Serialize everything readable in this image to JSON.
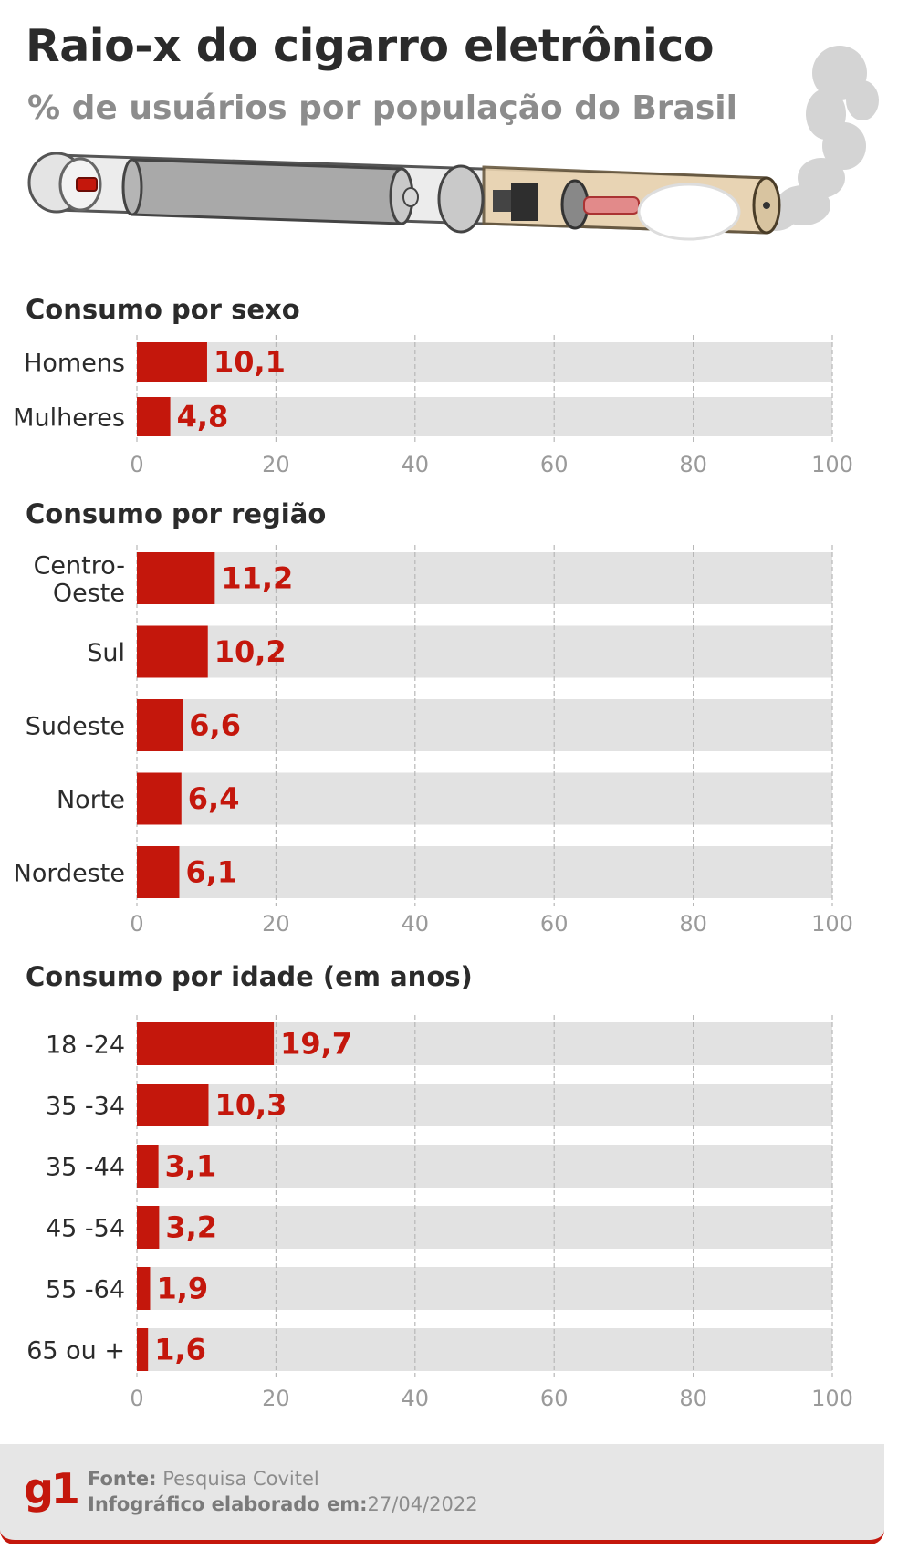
{
  "header": {
    "title": "Raio-x do cigarro eletrônico",
    "subtitle": "% de usuários por população do Brasil"
  },
  "colors": {
    "bar": "#c4170c",
    "track": "#e2e2e2",
    "label": "#2b2b2b",
    "tick": "#9a9a9a",
    "value": "#c4170c"
  },
  "chart_data": [
    {
      "type": "bar",
      "orientation": "horizontal",
      "title": "Consumo por sexo",
      "categories": [
        "Homens",
        "Mulheres"
      ],
      "values": [
        10.1,
        4.8
      ],
      "value_labels": [
        "10,1",
        "4,8"
      ],
      "xlim": [
        0,
        100
      ],
      "ticks": [
        "0",
        "20",
        "40",
        "60",
        "80",
        "100"
      ],
      "tick_values": [
        0,
        20,
        40,
        60,
        80,
        100
      ]
    },
    {
      "type": "bar",
      "orientation": "horizontal",
      "title": "Consumo por região",
      "categories": [
        [
          "Centro-",
          "Oeste"
        ],
        [
          "Sul"
        ],
        [
          "Sudeste"
        ],
        [
          "Norte"
        ],
        [
          "Nordeste"
        ]
      ],
      "values": [
        11.2,
        10.2,
        6.6,
        6.4,
        6.1
      ],
      "value_labels": [
        "11,2",
        "10,2",
        "6,6",
        "6,4",
        "6,1"
      ],
      "xlim": [
        0,
        100
      ],
      "ticks": [
        "0",
        "20",
        "40",
        "60",
        "80",
        "100"
      ],
      "tick_values": [
        0,
        20,
        40,
        60,
        80,
        100
      ]
    },
    {
      "type": "bar",
      "orientation": "horizontal",
      "title": "Consumo por idade (em anos)",
      "categories": [
        "18 -24",
        "35 -34",
        "35 -44",
        "45 -54",
        "55 -64",
        "65 ou +"
      ],
      "values": [
        19.7,
        10.3,
        3.1,
        3.2,
        1.9,
        1.6
      ],
      "value_labels": [
        "19,7",
        "10,3",
        "3,1",
        "3,2",
        "1,9",
        "1,6"
      ],
      "xlim": [
        0,
        100
      ],
      "ticks": [
        "0",
        "20",
        "40",
        "60",
        "80",
        "100"
      ],
      "tick_values": [
        0,
        20,
        40,
        60,
        80,
        100
      ]
    }
  ],
  "footer": {
    "logo": "g1",
    "source_label": "Fonte:",
    "source_value": "Pesquisa Covitel",
    "made_label": "Infográfico elaborado em:",
    "made_value": "27/04/2022"
  }
}
